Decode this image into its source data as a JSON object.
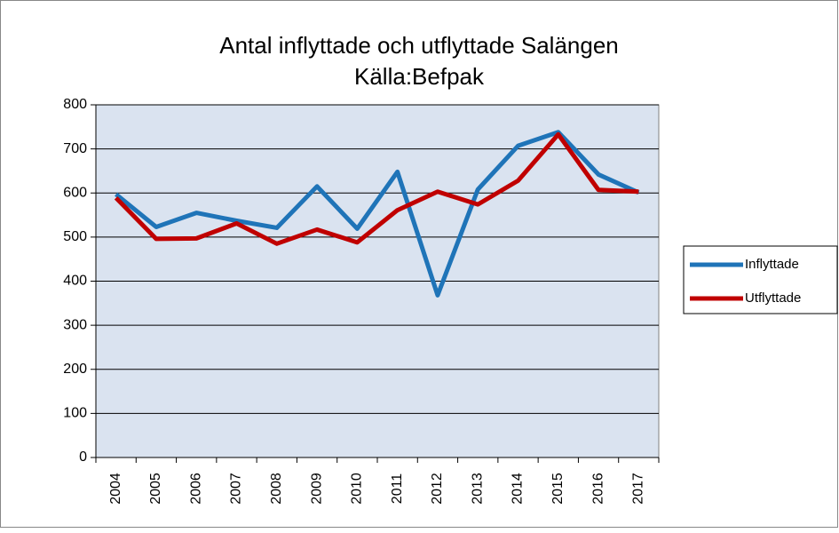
{
  "chart_data": {
    "type": "line",
    "title": "Antal inflyttade och utflyttade Salängen",
    "subtitle": "Källa:Befpak",
    "categories": [
      "2004",
      "2005",
      "2006",
      "2007",
      "2008",
      "2009",
      "2010",
      "2011",
      "2012",
      "2013",
      "2014",
      "2015",
      "2016",
      "2017"
    ],
    "series": [
      {
        "name": "Inflyttade",
        "color": "#1f74b8",
        "values": [
          597,
          523,
          555,
          537,
          521,
          615,
          519,
          648,
          368,
          608,
          707,
          738,
          642,
          601
        ]
      },
      {
        "name": "Utflyttade",
        "color": "#c00000",
        "values": [
          589,
          496,
          497,
          531,
          485,
          517,
          488,
          561,
          603,
          574,
          628,
          733,
          607,
          603
        ]
      }
    ],
    "ylim": [
      0,
      800
    ],
    "yticks": [
      0,
      100,
      200,
      300,
      400,
      500,
      600,
      700,
      800
    ],
    "grid": true,
    "legend": "right"
  }
}
